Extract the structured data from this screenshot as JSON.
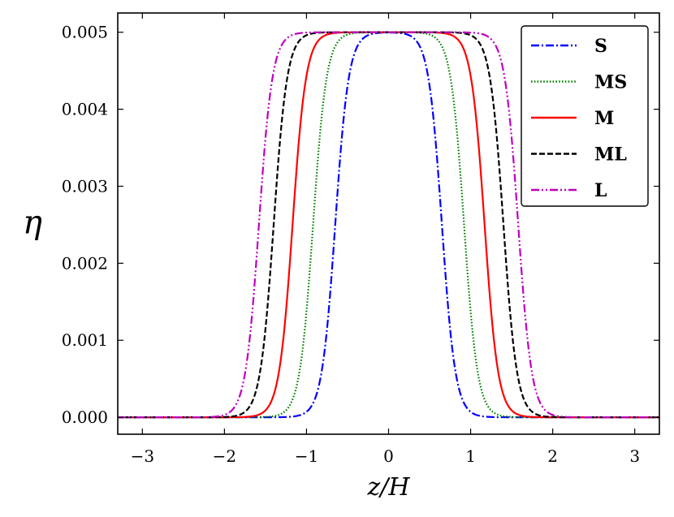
{
  "chart_data": {
    "type": "line",
    "title": "",
    "xlabel": "z/H",
    "ylabel": "η",
    "xlim": [
      -3.3,
      3.3
    ],
    "ylim": [
      -0.00022,
      0.00525
    ],
    "xticks": [
      -3,
      -2,
      -1,
      0,
      1,
      2,
      3
    ],
    "xtick_labels": [
      "−3",
      "−2",
      "−1",
      "0",
      "1",
      "2",
      "3"
    ],
    "yticks": [
      0.0,
      0.001,
      0.002,
      0.003,
      0.004,
      0.005
    ],
    "ytick_labels": [
      "0.000",
      "0.001",
      "0.002",
      "0.003",
      "0.004",
      "0.005"
    ],
    "grid": false,
    "legend_position": "top-right",
    "plateau": 0.005,
    "series": [
      {
        "name": "S",
        "color": "#0000ff",
        "dash": "dashdot",
        "half_width": 0.65,
        "edge_scale": 0.075
      },
      {
        "name": "MS",
        "color": "#008000",
        "dash": "dotted",
        "half_width": 0.92,
        "edge_scale": 0.075
      },
      {
        "name": "M",
        "color": "#ff0000",
        "dash": "solid",
        "half_width": 1.17,
        "edge_scale": 0.075
      },
      {
        "name": "ML",
        "color": "#000000",
        "dash": "dashed",
        "half_width": 1.4,
        "edge_scale": 0.075
      },
      {
        "name": "L",
        "color": "#bf00bf",
        "dash": "dashdotdot",
        "half_width": 1.58,
        "edge_scale": 0.075
      }
    ]
  }
}
